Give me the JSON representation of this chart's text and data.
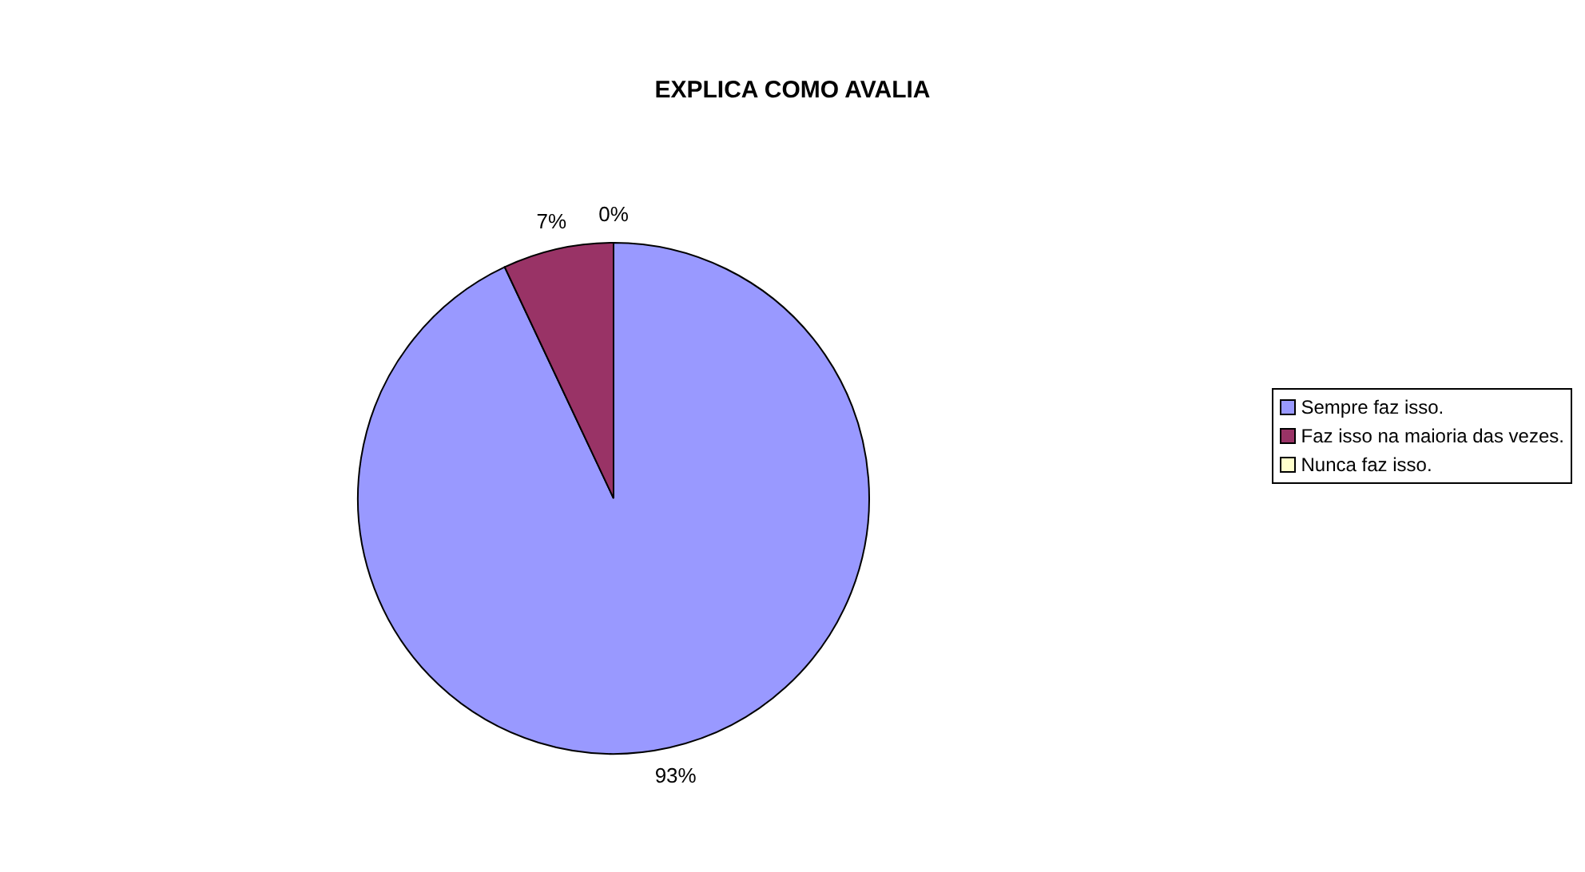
{
  "chart_data": {
    "type": "pie",
    "title": "EXPLICA COMO AVALIA",
    "categories": [
      "Sempre faz isso.",
      "Faz isso na maioria das vezes.",
      "Nunca faz isso."
    ],
    "values": [
      93,
      7,
      0
    ],
    "colors": [
      "#9999ff",
      "#993366",
      "#ffffcc"
    ],
    "value_labels": [
      "93%",
      "7%",
      "0%"
    ],
    "legend": "right"
  }
}
